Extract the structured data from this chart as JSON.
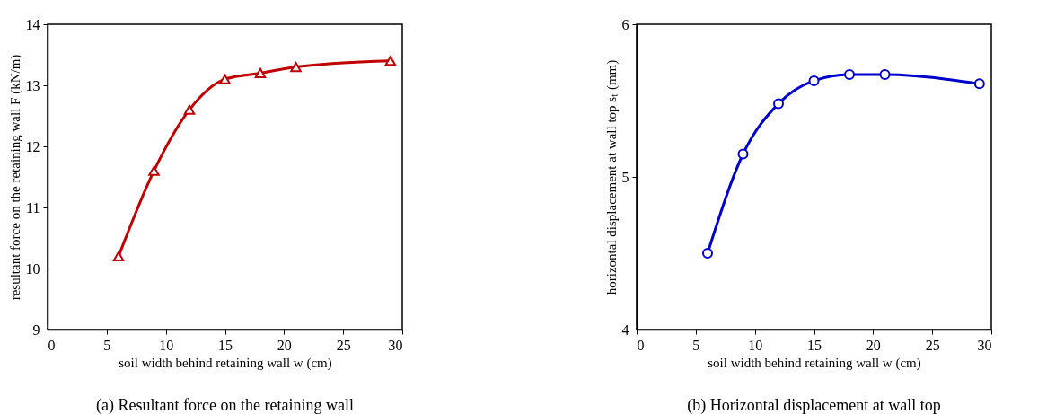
{
  "chart_data": [
    {
      "type": "line",
      "title": "(a) Resultant force on the retaining wall",
      "xlabel": "soil width behind retaining wall w (cm)",
      "ylabel": "resultant force on the retaining wall F (kN/m)",
      "x": [
        6,
        9,
        12,
        15,
        18,
        21,
        29
      ],
      "series": [
        {
          "color": "#c00000",
          "values": [
            10.2,
            11.6,
            12.6,
            13.1,
            13.2,
            13.3,
            13.4
          ]
        }
      ],
      "xlim": [
        0,
        30
      ],
      "xticks": [
        0,
        5,
        10,
        15,
        20,
        25,
        30
      ],
      "ylim": [
        9,
        14
      ],
      "yticks": [
        9,
        10,
        11,
        12,
        13,
        14
      ],
      "grid": false,
      "marker": "triangle",
      "line_style": "solid"
    },
    {
      "type": "line",
      "title": "(b) Horizontal displacement at wall top",
      "xlabel": "soil width behind retaining wall w (cm)",
      "ylabel": "horizontal displacement at wall top sₜ (mm)",
      "x": [
        6,
        9,
        12,
        15,
        18,
        21,
        29
      ],
      "series": [
        {
          "color": "#0000cc",
          "values": [
            4.5,
            5.15,
            5.48,
            5.63,
            5.67,
            5.67,
            5.61
          ]
        }
      ],
      "xlim": [
        0,
        30
      ],
      "xticks": [
        0,
        5,
        10,
        15,
        20,
        25,
        30
      ],
      "ylim": [
        4,
        6
      ],
      "yticks": [
        4,
        5,
        6
      ],
      "grid": false,
      "marker": "circle",
      "line_style": "solid"
    }
  ]
}
